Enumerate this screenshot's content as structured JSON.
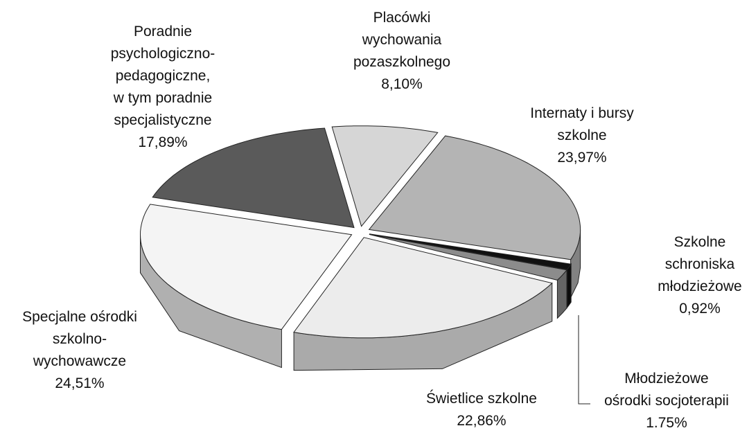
{
  "chart_data": {
    "type": "pie",
    "categories": [
      "Placówki\nwychowania\npozaszkolnego",
      "Internaty i bursy\nszkolne",
      "Szkolne\nschroniska\nmłodzieżowe",
      "Młodzieżowe\nośrodki socjoterapii",
      "Świetlice szkolne",
      "Specjalne ośrodki\nszkolno-\nwychowawcze",
      "Poradnie\npsychologiczno-\npedagogiczne,\nw tym poradnie\nspecjalistyczne"
    ],
    "values": [
      8.1,
      23.97,
      0.92,
      1.75,
      22.86,
      24.51,
      17.89
    ],
    "value_labels": [
      "8,10%",
      "23,97%",
      "0,92%",
      "1.75%",
      "22,86%",
      "24,51%",
      "17,89%"
    ],
    "colors": [
      "#d6d6d6",
      "#b4b4b4",
      "#111111",
      "#8c8c8c",
      "#ececec",
      "#f4f4f4",
      "#5a5a5a"
    ]
  }
}
